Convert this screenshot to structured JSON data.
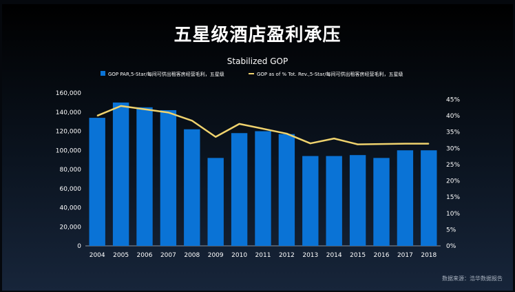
{
  "page": {
    "title": "五星级酒店盈利承压",
    "source": "数据来源：浩华数据报告"
  },
  "chart_data": {
    "type": "bar+line",
    "title": "Stabilized GOP",
    "categories": [
      "2004",
      "2005",
      "2006",
      "2007",
      "2008",
      "2009",
      "2010",
      "2011",
      "2012",
      "2013",
      "2014",
      "2015",
      "2016",
      "2017",
      "2018"
    ],
    "series": [
      {
        "name": "GOP PAR,5-Star/每间可供出租客房经营毛利，五星级",
        "type": "bar",
        "axis": "left",
        "color": "#0a73d6",
        "values": [
          134000,
          150000,
          145000,
          142000,
          122000,
          92000,
          118000,
          120000,
          117000,
          94000,
          94000,
          95000,
          92000,
          100000,
          100000
        ]
      },
      {
        "name": "GOP as of % Tot. Rev.,5-Star/每间可供出租客房经营毛利，五星级",
        "type": "line",
        "axis": "right",
        "color": "#f0d36e",
        "values": [
          40.0,
          43.0,
          42.0,
          41.0,
          38.5,
          33.5,
          37.5,
          36.0,
          34.5,
          31.5,
          33.0,
          31.2,
          31.3,
          31.4,
          31.4
        ]
      }
    ],
    "y_left": {
      "min": 0,
      "max": 160000,
      "ticks": [
        "0",
        "20,000",
        "40,000",
        "60,000",
        "80,000",
        "100,000",
        "120,000",
        "140,000",
        "160,000"
      ]
    },
    "y_right": {
      "min": 0,
      "max": 47,
      "ticks": [
        "0%",
        "5%",
        "10%",
        "15%",
        "20%",
        "25%",
        "30%",
        "35%",
        "40%",
        "45%"
      ]
    },
    "grid": false,
    "legend": "top"
  }
}
